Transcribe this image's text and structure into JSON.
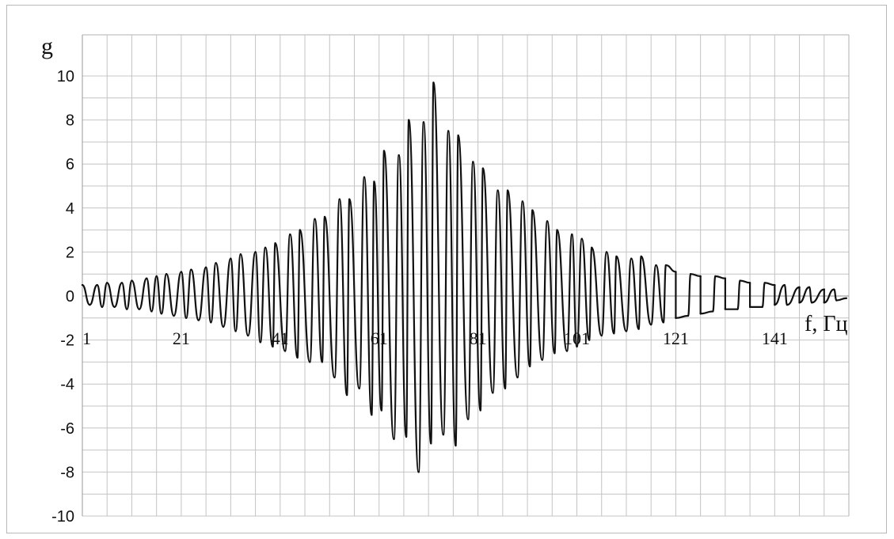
{
  "chart_data": {
    "type": "line",
    "ylabel": "g",
    "xlabel": "f, Гц",
    "ylim": [
      -10,
      10
    ],
    "xlim": [
      1,
      156
    ],
    "y_ticks": [
      10,
      8,
      6,
      4,
      2,
      0,
      -2,
      -4,
      -6,
      -8,
      -10
    ],
    "y_tick_labels": [
      "10",
      "8",
      "6",
      "4",
      "2",
      "0",
      "-2",
      "-4",
      "-6",
      "-8",
      "-10"
    ],
    "x_ticks": [
      1,
      21,
      41,
      61,
      81,
      101,
      121,
      141
    ],
    "x_tick_labels": [
      "1",
      "21",
      "41",
      "61",
      "81",
      "101",
      "121",
      "141"
    ],
    "grid": true,
    "line_color": "#111111",
    "series": [
      {
        "peaks": [
          [
            1,
            0.5
          ],
          [
            4,
            0.5
          ],
          [
            6,
            0.6
          ],
          [
            9,
            0.6
          ],
          [
            11,
            0.7
          ],
          [
            14,
            0.8
          ],
          [
            16,
            0.9
          ],
          [
            18,
            1.0
          ],
          [
            21,
            1.1
          ],
          [
            23,
            1.2
          ],
          [
            26,
            1.3
          ],
          [
            28,
            1.5
          ],
          [
            31,
            1.7
          ],
          [
            33,
            1.9
          ],
          [
            36,
            2.0
          ],
          [
            38,
            2.2
          ],
          [
            40,
            2.4
          ],
          [
            43,
            2.8
          ],
          [
            45,
            3.0
          ],
          [
            48,
            3.5
          ],
          [
            50,
            3.6
          ],
          [
            53,
            4.4
          ],
          [
            55,
            4.4
          ],
          [
            58,
            5.4
          ],
          [
            60,
            5.2
          ],
          [
            62,
            6.6
          ],
          [
            65,
            6.4
          ],
          [
            67,
            8.0
          ],
          [
            70,
            7.9
          ],
          [
            72,
            9.7
          ],
          [
            75,
            7.5
          ],
          [
            77,
            7.3
          ],
          [
            80,
            6.1
          ],
          [
            82,
            5.8
          ],
          [
            85,
            4.8
          ],
          [
            87,
            4.8
          ],
          [
            90,
            4.3
          ],
          [
            92,
            3.9
          ],
          [
            95,
            3.4
          ],
          [
            97,
            3.0
          ],
          [
            100,
            2.8
          ],
          [
            102,
            2.6
          ],
          [
            104,
            2.2
          ],
          [
            107,
            2.0
          ],
          [
            109,
            1.8
          ],
          [
            112,
            1.7
          ],
          [
            114,
            1.8
          ],
          [
            117,
            1.4
          ],
          [
            119,
            1.4
          ],
          [
            121,
            1.1
          ],
          [
            124,
            1.0
          ],
          [
            126,
            0.9
          ],
          [
            129,
            0.9
          ],
          [
            131,
            0.8
          ],
          [
            134,
            0.7
          ],
          [
            136,
            0.6
          ],
          [
            139,
            0.6
          ],
          [
            141,
            0.5
          ],
          [
            143,
            0.5
          ],
          [
            146,
            0.4
          ],
          [
            148,
            0.4
          ],
          [
            151,
            0.3
          ],
          [
            153,
            0.3
          ]
        ],
        "troughs": [
          [
            2.5,
            -0.4
          ],
          [
            5,
            -0.5
          ],
          [
            7.5,
            -0.5
          ],
          [
            10,
            -0.6
          ],
          [
            12.5,
            -0.6
          ],
          [
            15,
            -0.7
          ],
          [
            17,
            -0.8
          ],
          [
            19.5,
            -0.9
          ],
          [
            22,
            -1.0
          ],
          [
            24.5,
            -1.1
          ],
          [
            27,
            -1.2
          ],
          [
            29.5,
            -1.4
          ],
          [
            32,
            -1.6
          ],
          [
            34.5,
            -1.8
          ],
          [
            37,
            -2.1
          ],
          [
            39.5,
            -2.3
          ],
          [
            42,
            -2.5
          ],
          [
            44.5,
            -2.8
          ],
          [
            47,
            -3.0
          ],
          [
            49.5,
            -3.0
          ],
          [
            52,
            -3.7
          ],
          [
            54.5,
            -4.5
          ],
          [
            57,
            -4.2
          ],
          [
            59.5,
            -5.4
          ],
          [
            61.5,
            -5.2
          ],
          [
            64,
            -6.5
          ],
          [
            66.5,
            -6.4
          ],
          [
            69,
            -8.0
          ],
          [
            71.5,
            -6.7
          ],
          [
            74,
            -6.3
          ],
          [
            76.5,
            -6.8
          ],
          [
            79,
            -5.6
          ],
          [
            81.5,
            -5.2
          ],
          [
            84,
            -4.4
          ],
          [
            86.5,
            -4.2
          ],
          [
            89,
            -3.7
          ],
          [
            91.5,
            -3.2
          ],
          [
            94,
            -2.9
          ],
          [
            96.5,
            -2.6
          ],
          [
            99,
            -2.5
          ],
          [
            101,
            -2.3
          ],
          [
            103.5,
            -2.0
          ],
          [
            106,
            -1.8
          ],
          [
            108.5,
            -1.7
          ],
          [
            111,
            -1.6
          ],
          [
            113.5,
            -1.5
          ],
          [
            116,
            -1.3
          ],
          [
            118.5,
            -1.2
          ],
          [
            121,
            -1.0
          ],
          [
            123.5,
            -0.9
          ],
          [
            126,
            -0.8
          ],
          [
            128.5,
            -0.7
          ],
          [
            131,
            -0.6
          ],
          [
            133.5,
            -0.6
          ],
          [
            136,
            -0.5
          ],
          [
            138.5,
            -0.5
          ],
          [
            141,
            -0.4
          ],
          [
            143.5,
            -0.4
          ],
          [
            146,
            -0.3
          ],
          [
            148.5,
            -0.3
          ],
          [
            151,
            -0.3
          ],
          [
            153.5,
            -0.2
          ],
          [
            155.5,
            -0.1
          ]
        ]
      }
    ]
  }
}
